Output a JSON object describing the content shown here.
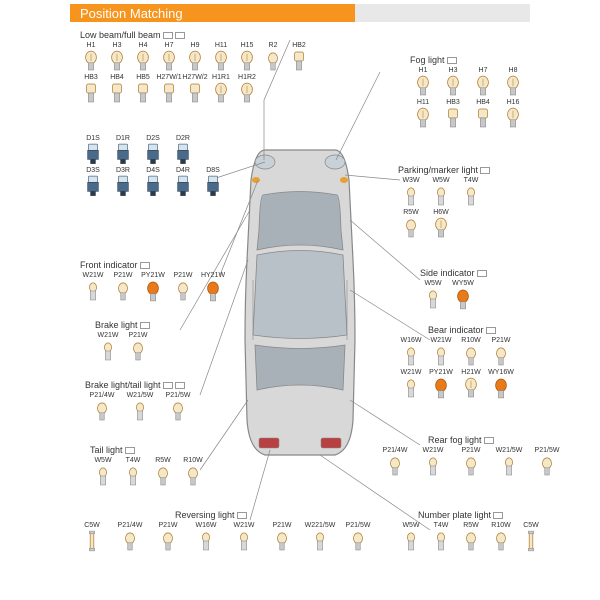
{
  "header": {
    "title": "Position Matching",
    "bg_left": "#e8e8e8",
    "bg_right": "#f7941d",
    "text_color": "#ffffff"
  },
  "colors": {
    "bulb_outline": "#b07a2a",
    "bulb_glass": "#f5e8c8",
    "bulb_base": "#c8c8c8",
    "bulb_amber": "#e87a1a",
    "hid_body": "#4a6a8a",
    "hid_dark": "#2a3a4a",
    "car_outline": "#888888",
    "car_fill": "#d8d8d8",
    "car_glass": "#a8b0b8",
    "leader": "#888888"
  },
  "sections": {
    "low_beam": {
      "title": "Low beam/full beam",
      "rows": [
        [
          "H1",
          "H3",
          "H4",
          "H7",
          "H9",
          "H11",
          "H15",
          "R2",
          "HB2"
        ],
        [
          "HB3",
          "HB4",
          "HB5",
          "H27W/1",
          "H27W/2",
          "H1R1",
          "H1R2"
        ]
      ]
    },
    "hid": {
      "rows": [
        [
          "D1S",
          "D1R",
          "D2S",
          "D2R"
        ],
        [
          "D3S",
          "D3R",
          "D4S",
          "D4R",
          "D8S"
        ]
      ]
    },
    "fog": {
      "title": "Fog light",
      "rows": [
        [
          "H1",
          "H3",
          "H7",
          "H8"
        ],
        [
          "H11",
          "HB3",
          "HB4",
          "H16"
        ]
      ]
    },
    "parking": {
      "title": "Parking/marker light",
      "rows": [
        [
          "W3W",
          "W5W",
          "T4W"
        ],
        [
          "R5W",
          "H6W"
        ]
      ]
    },
    "front_ind": {
      "title": "Front indicator",
      "rows": [
        [
          "W21W",
          "P21W",
          "PY21W",
          "P21W",
          "HY21W"
        ]
      ]
    },
    "side_ind": {
      "title": "Side indicator",
      "rows": [
        [
          "W5W",
          "WY5W"
        ]
      ]
    },
    "brake": {
      "title": "Brake light",
      "rows": [
        [
          "W21W",
          "P21W"
        ]
      ]
    },
    "bear_ind": {
      "title": "Bear indicator",
      "rows": [
        [
          "W16W",
          "W21W",
          "R10W",
          "P21W"
        ],
        [
          "W21W",
          "PY21W",
          "H21W",
          "WY16W"
        ]
      ]
    },
    "brake_tail": {
      "title": "Brake light/tail light",
      "rows": [
        [
          "P21/4W",
          "W21/5W",
          "P21/5W"
        ]
      ]
    },
    "rear_fog": {
      "title": "Rear fog light",
      "rows": [
        [
          "P21/4W",
          "W21W",
          "P21W",
          "W21/5W",
          "P21/5W"
        ]
      ]
    },
    "tail": {
      "title": "Tail light",
      "rows": [
        [
          "W5W",
          "T4W",
          "R5W",
          "R10W"
        ]
      ]
    },
    "reversing": {
      "title": "Reversing light",
      "rows": [
        [
          "C5W",
          "P21/4W",
          "P21W",
          "W16W",
          "W21W",
          "P21W",
          "W221/5W",
          "P21/5W"
        ]
      ]
    },
    "number_plate": {
      "title": "Number plate light",
      "rows": [
        [
          "W5W",
          "T4W",
          "R5W",
          "R10W",
          "C5W"
        ]
      ]
    }
  }
}
